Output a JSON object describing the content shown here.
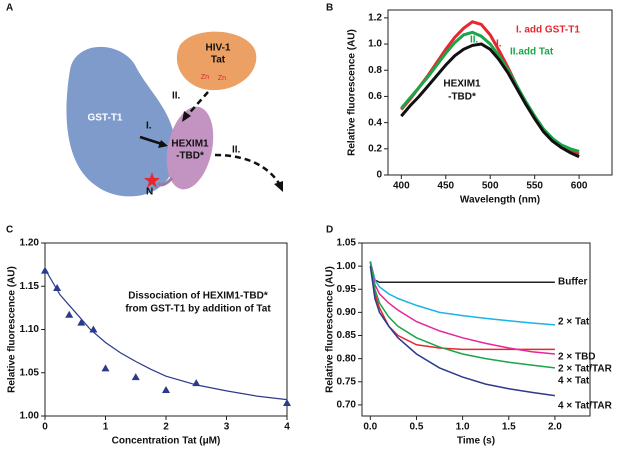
{
  "panel_labels": [
    "A",
    "B",
    "C",
    "D"
  ],
  "diagram": {
    "labels": {
      "hiv": "HIV-1",
      "tat": "Tat",
      "zn1": "Zn",
      "zn2": "Zn",
      "gst": "GST-T1",
      "hexim": "HEXIM1",
      "tbd": "-TBD*",
      "step1": "I.",
      "step2": "II.",
      "step1b": "I.",
      "step2b": "II.",
      "n": "N"
    }
  },
  "chart_data": [
    {
      "type": "line",
      "ylabel": "Relative fluorescence (AU)",
      "xlabel": "Wavelength (nm)",
      "x": [
        400,
        410,
        420,
        430,
        440,
        450,
        460,
        470,
        480,
        490,
        500,
        510,
        520,
        530,
        540,
        550,
        560,
        570,
        580,
        590,
        600
      ],
      "xlim": [
        385,
        637
      ],
      "xticks": [
        400,
        450,
        500,
        550,
        600
      ],
      "ylim": [
        0,
        1.26
      ],
      "yticks": [
        0,
        0.2,
        0.4,
        0.6,
        0.8,
        {
          "value": 1,
          "label": "1.0"
        },
        1.2
      ],
      "series": [
        {
          "color": "#e8262e",
          "values": [
            0.5,
            0.58,
            0.67,
            0.76,
            0.86,
            0.96,
            1.05,
            1.12,
            1.17,
            1.15,
            1.07,
            0.95,
            0.82,
            0.68,
            0.55,
            0.43,
            0.33,
            0.26,
            0.21,
            0.18,
            0.16
          ]
        },
        {
          "color": "#1aa548",
          "values": [
            0.51,
            0.59,
            0.67,
            0.75,
            0.84,
            0.93,
            1.01,
            1.07,
            1.09,
            1.06,
            1.0,
            0.91,
            0.8,
            0.68,
            0.56,
            0.45,
            0.35,
            0.28,
            0.23,
            0.2,
            0.18
          ]
        },
        {
          "color": "#111111",
          "values": [
            0.45,
            0.53,
            0.6,
            0.68,
            0.76,
            0.84,
            0.91,
            0.96,
            0.99,
            1.0,
            0.96,
            0.88,
            0.78,
            0.66,
            0.54,
            0.43,
            0.33,
            0.26,
            0.21,
            0.17,
            0.14
          ]
        }
      ],
      "annotations": [
        {
          "text": "I. add GST-T1",
          "color": "#e8262e"
        },
        {
          "text": "II.add Tat",
          "color": "#1aa548"
        },
        {
          "text": "HEXIM1",
          "color": "#111111"
        },
        {
          "text": "-TBD*",
          "color": "#111111"
        },
        {
          "text": "II.",
          "color": "#1aa548"
        },
        {
          "text": "I.",
          "color": "#e8262e"
        }
      ]
    },
    {
      "type": "scatter",
      "ylabel": "Relative fluorescence (AU)",
      "xlabel": "Concentration Tat (μM)",
      "x": [
        0,
        0.2,
        0.4,
        0.6,
        0.8,
        1,
        1.5,
        2,
        2.5,
        4
      ],
      "values": [
        1.168,
        1.148,
        1.117,
        1.108,
        1.1,
        1.055,
        1.045,
        1.03,
        1.038,
        1.015
      ],
      "color": "#2b3a8c",
      "fit": {
        "color": "#2b3a8c",
        "x": [
          0,
          0.25,
          0.5,
          0.75,
          1,
          1.25,
          1.5,
          1.75,
          2,
          2.5,
          3,
          3.5,
          4
        ],
        "values": [
          1.17,
          1.14,
          1.12,
          1.1,
          1.085,
          1.073,
          1.063,
          1.054,
          1.046,
          1.036,
          1.029,
          1.023,
          1.019
        ]
      },
      "xlim": [
        0,
        4
      ],
      "xticks": [
        0,
        1,
        2,
        3,
        4
      ],
      "ylim": [
        1.0,
        1.2
      ],
      "yticks": [
        {
          "value": 1,
          "label": "1.00"
        },
        {
          "value": 1.05,
          "label": "1.05"
        },
        {
          "value": 1.1,
          "label": "1.10"
        },
        {
          "value": 1.15,
          "label": "1.15"
        },
        {
          "value": 1.2,
          "label": "1.20"
        }
      ],
      "annotations": [
        {
          "text": "Dissociation of HEXIM1-TBD*",
          "color": "#111111"
        },
        {
          "text": "from GST-T1 by addition of Tat",
          "color": "#111111"
        }
      ]
    },
    {
      "type": "line",
      "ylabel": "Relative fluorescence (AU)",
      "xlabel": "Time (s)",
      "x": [
        0,
        0.05,
        0.1,
        0.2,
        0.3,
        0.5,
        0.75,
        1,
        1.25,
        1.5,
        1.75,
        2
      ],
      "xlim": [
        -0.09,
        2.38
      ],
      "xticks": [
        {
          "value": 0,
          "label": "0.0"
        },
        0.5,
        {
          "value": 1,
          "label": "1.0"
        },
        1.5,
        {
          "value": 2,
          "label": "2.0"
        }
      ],
      "ylim": [
        0.676,
        1.05
      ],
      "yticks": [
        {
          "value": 0.7,
          "label": "0.70"
        },
        0.75,
        {
          "value": 0.8,
          "label": "0.80"
        },
        0.85,
        {
          "value": 0.9,
          "label": "0.90"
        },
        0.95,
        {
          "value": 1,
          "label": "1.00"
        },
        1.05
      ],
      "series": [
        {
          "name": "Buffer",
          "color": "#222222",
          "values": [
            1.01,
            0.97,
            0.965,
            0.965,
            0.965,
            0.965,
            0.965,
            0.965,
            0.965,
            0.965,
            0.965,
            0.965
          ]
        },
        {
          "name": "2 × Tat",
          "color": "#19b4ea",
          "values": [
            1.01,
            0.97,
            0.955,
            0.94,
            0.93,
            0.915,
            0.9,
            0.893,
            0.887,
            0.882,
            0.877,
            0.873
          ]
        },
        {
          "name": "2 × TBD",
          "color": "#e8262e",
          "values": [
            1.01,
            0.94,
            0.91,
            0.87,
            0.85,
            0.83,
            0.823,
            0.82,
            0.82,
            0.82,
            0.82,
            0.82
          ]
        },
        {
          "name": "2 × Tat/TAR",
          "color": "#e5279b",
          "values": [
            1.01,
            0.96,
            0.94,
            0.92,
            0.905,
            0.88,
            0.86,
            0.845,
            0.833,
            0.823,
            0.815,
            0.81
          ]
        },
        {
          "name": "4 × Tat",
          "color": "#1aa548",
          "values": [
            1.01,
            0.95,
            0.92,
            0.89,
            0.87,
            0.845,
            0.825,
            0.81,
            0.8,
            0.792,
            0.786,
            0.78
          ]
        },
        {
          "name": "4 × Tat/TAR",
          "color": "#2b3a8c",
          "values": [
            1.0,
            0.93,
            0.9,
            0.87,
            0.845,
            0.81,
            0.78,
            0.76,
            0.745,
            0.735,
            0.727,
            0.72
          ]
        }
      ]
    }
  ]
}
